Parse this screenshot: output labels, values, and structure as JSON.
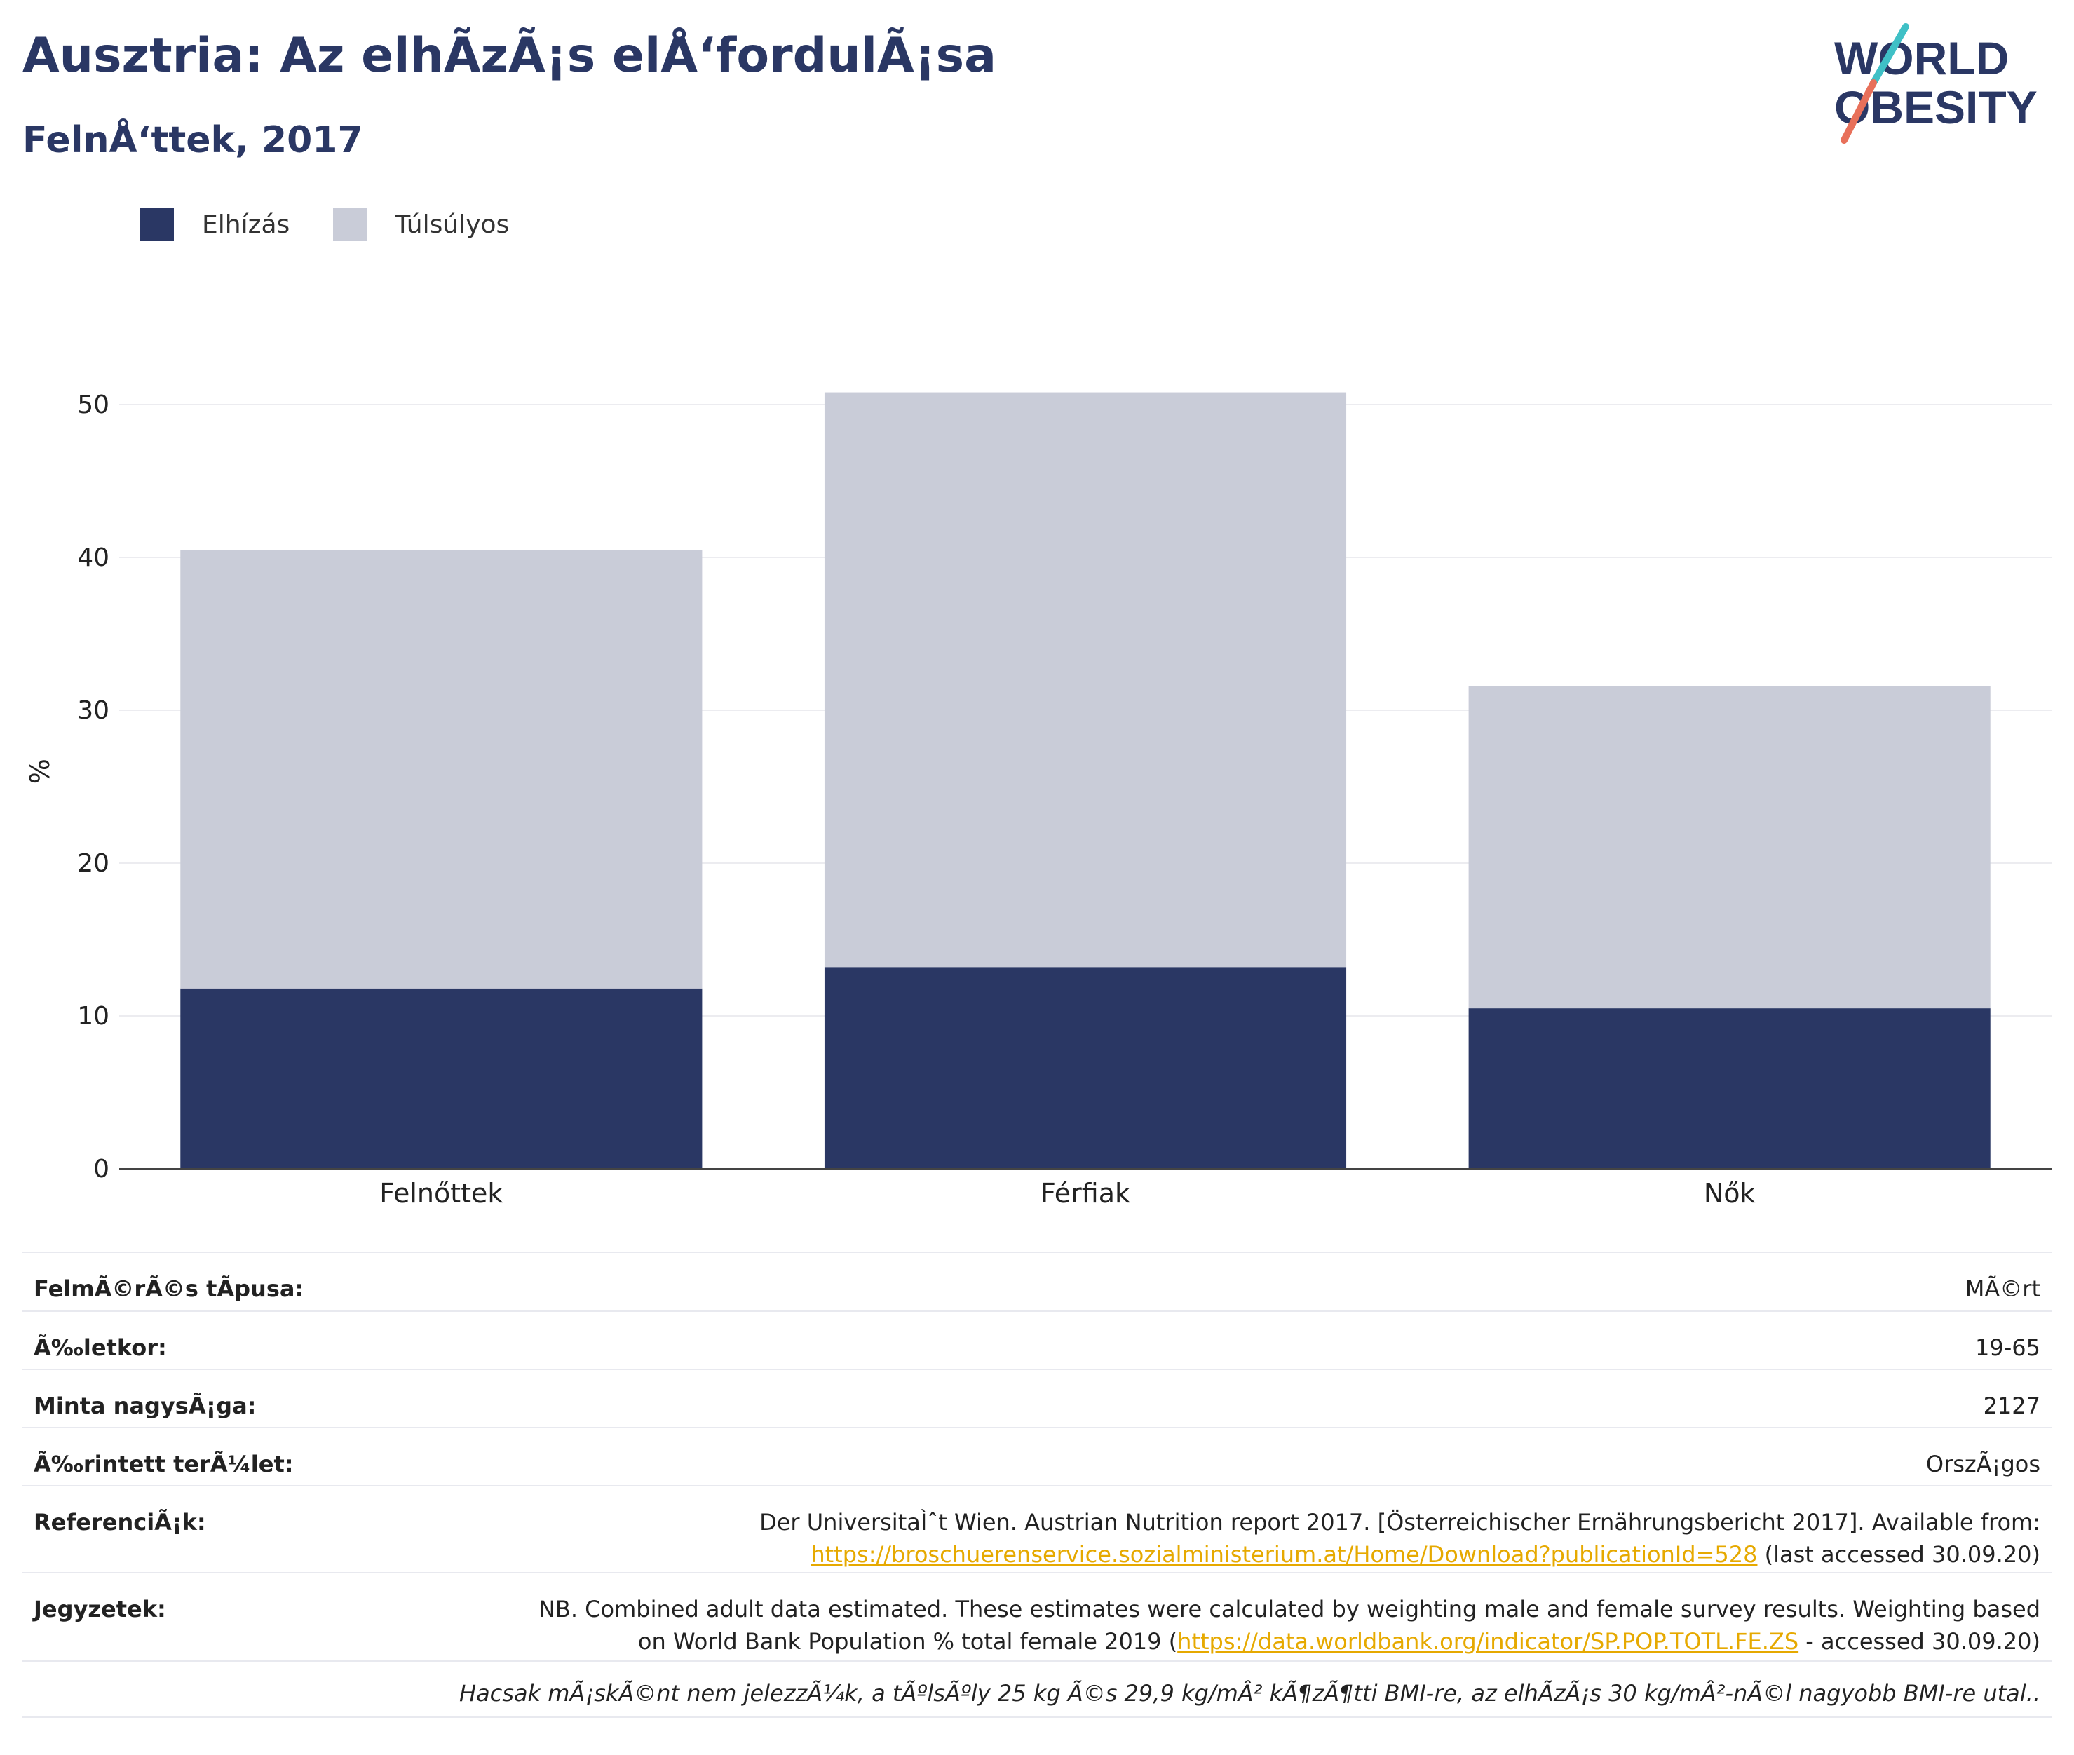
{
  "header": {
    "title": "Ausztria: Az elhÃzÃ¡s elÅ‘fordulÃ¡sa",
    "subtitle": "FelnÅ‘ttek, 2017",
    "logo_line1": "WORLD",
    "logo_line2": "OBESITY"
  },
  "legend": {
    "items": [
      {
        "label": "Elhízás",
        "color": "#2a3764"
      },
      {
        "label": "Túlsúlyos",
        "color": "#c9ccd8"
      }
    ]
  },
  "chart_data": {
    "type": "bar",
    "stacked": true,
    "categories": [
      "Felnőttek",
      "Férfiak",
      "Nők"
    ],
    "series": [
      {
        "name": "Elhízás",
        "values": [
          11.8,
          13.2,
          10.5
        ],
        "color": "#2a3764"
      },
      {
        "name": "Túlsúlyos",
        "values": [
          28.7,
          37.6,
          21.1
        ],
        "color": "#c9ccd8"
      }
    ],
    "ylabel": "%",
    "ylim": [
      0,
      52
    ],
    "yticks": [
      0,
      10,
      20,
      30,
      40,
      50
    ],
    "grid": true
  },
  "info": {
    "rows": [
      {
        "key": "FelmÃ©rÃ©s tÃpusa:",
        "value": "MÃ©rt"
      },
      {
        "key": "Ã‰letkor:",
        "value": "19-65"
      },
      {
        "key": "Minta nagysÃ¡ga:",
        "value": "2127"
      },
      {
        "key": "Ã‰rintett terÃ¼let:",
        "value": "OrszÃ¡gos"
      }
    ],
    "references": {
      "key": "ReferenciÃ¡k:",
      "text1": "Der UniversitaÌˆt Wien. Austrian Nutrition report 2017. [Österreichischer Ernährungsbericht 2017]. Available from:",
      "link": "https://broschuerenservice.sozialministerium.at/Home/Download?publicationId=528",
      "text2": " (last accessed 30.09.20)"
    },
    "notes": {
      "key": "Jegyzetek:",
      "text1": "NB. Combined adult data estimated. These estimates were calculated by weighting male and female survey results. Weighting based",
      "text2a": "on World Bank Population % total female 2019 (",
      "link": "https://data.worldbank.org/indicator/SP.POP.TOTL.FE.ZS",
      "text2b": " - accessed 30.09.20)"
    },
    "footnote": "Hacsak mÃ¡skÃ©nt nem jelezzÃ¼k, a tÃºlsÃºly 25 kg Ã©s 29,9 kg/mÂ² kÃ¶zÃ¶tti BMI-re, az elhÃzÃ¡s 30 kg/mÂ²-nÃ©l nagyobb BMI-re utal.."
  }
}
